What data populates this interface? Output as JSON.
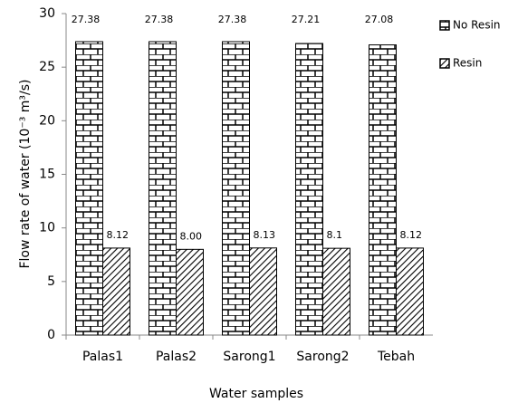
{
  "chart_data": {
    "type": "bar",
    "categories": [
      "Palas1",
      "Palas2",
      "Sarong1",
      "Sarong2",
      "Tebah"
    ],
    "series": [
      {
        "name": "No  Resin",
        "color": "#000000",
        "values": [
          27.38,
          27.38,
          27.38,
          27.21,
          27.08
        ]
      },
      {
        "name": "Resin",
        "color": "#000000",
        "values": [
          8.12,
          8.0,
          8.13,
          8.1,
          8.12
        ],
        "value_labels": [
          "8.12",
          "8.00",
          "8.13",
          "8.1",
          "8.12"
        ]
      }
    ],
    "xlabel": "Water samples",
    "ylabel": "Flow rate of water  (10⁻³ m³/s)",
    "ylim": [
      0,
      30
    ],
    "yticks": [
      0,
      5,
      10,
      15,
      20,
      25,
      30
    ],
    "grid": false,
    "legend": "upper right"
  }
}
